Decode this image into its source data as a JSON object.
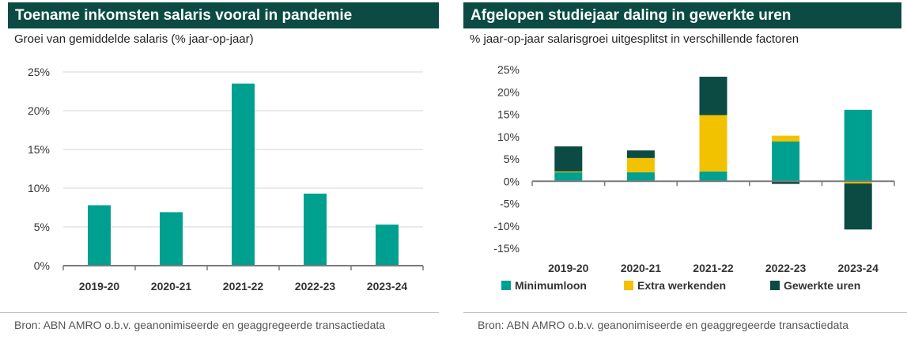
{
  "left": {
    "title": "Toename inkomsten salaris vooral in pandemie",
    "subtitle": "Groei van gemiddelde salaris (% jaar-op-jaar)",
    "source": "Bron: ABN AMRO o.b.v. geanonimiseerde en geaggregeerde transactiedata"
  },
  "right": {
    "title": "Afgelopen studiejaar daling in gewerkte uren",
    "subtitle": "% jaar-op-jaar salarisgroei uitgesplitst in verschillende factoren",
    "source": "Bron: ABN AMRO o.b.v. geanonimiseerde en geaggregeerde transactiedata"
  },
  "chart_data": [
    {
      "type": "bar",
      "categories": [
        "2019-20",
        "2020-21",
        "2021-22",
        "2022-23",
        "2023-24"
      ],
      "values": [
        7.8,
        6.9,
        23.5,
        9.3,
        5.3
      ],
      "ylim": [
        0,
        25
      ],
      "yticks": [
        "0%",
        "5%",
        "10%",
        "15%",
        "20%",
        "25%"
      ],
      "tick_values": [
        0,
        5,
        10,
        15,
        20,
        25
      ],
      "grid": true,
      "colors": {
        "bar": "#00a090",
        "grid": "#d6d6d6",
        "axis": "#7a7a7a"
      }
    },
    {
      "type": "bar",
      "stacked": true,
      "categories": [
        "2019-20",
        "2020-21",
        "2021-22",
        "2022-23",
        "2023-24"
      ],
      "series": [
        {
          "name": "Minimumloon",
          "values": [
            2.0,
            2.0,
            2.2,
            8.9,
            16.0
          ],
          "color": "#00a090"
        },
        {
          "name": "Extra werkenden",
          "values": [
            0.2,
            3.2,
            12.6,
            1.3,
            -0.5
          ],
          "color": "#f2c200"
        },
        {
          "name": "Gewerkte uren",
          "values": [
            5.6,
            1.7,
            8.6,
            -0.6,
            -10.3
          ],
          "color": "#0b4b43"
        }
      ],
      "ylim": [
        -15,
        25
      ],
      "yticks": [
        "-15%",
        "-10%",
        "-5%",
        "0%",
        "5%",
        "10%",
        "15%",
        "20%",
        "25%"
      ],
      "tick_values": [
        -15,
        -10,
        -5,
        0,
        5,
        10,
        15,
        20,
        25
      ],
      "grid": false,
      "legend": "bottom"
    }
  ]
}
